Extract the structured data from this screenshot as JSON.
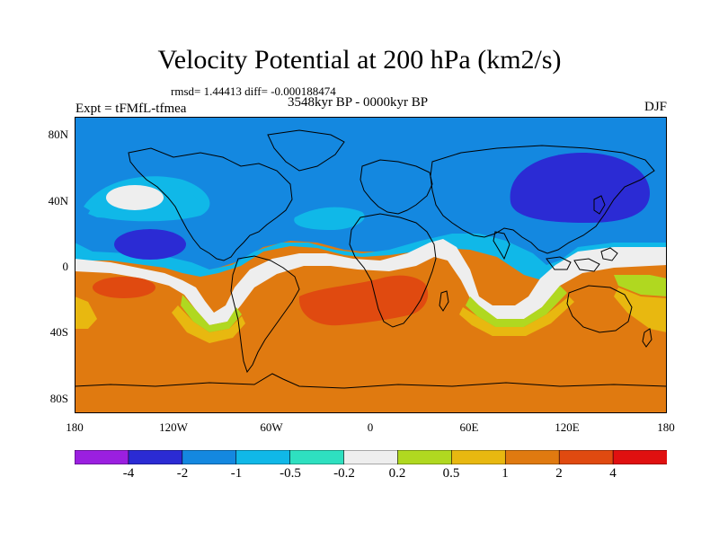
{
  "figure": {
    "title": "Velocity Potential at 200 hPa (km2/s)",
    "stats": "rmsd= 1.44413 diff= -0.000188474",
    "period": "3548kyr BP - 0000kyr BP",
    "experiment": "Expt = tFMfL-tfmea",
    "season": "DJF"
  },
  "map": {
    "lat_labels": [
      "80N",
      "40N",
      "0",
      "40S",
      "80S"
    ],
    "lon_labels": [
      "180",
      "120W",
      "60W",
      "0",
      "60E",
      "120E",
      "180"
    ]
  },
  "colorbar": {
    "labels": [
      "-4",
      "-2",
      "-1",
      "-0.5",
      "-0.2",
      "0.2",
      "0.5",
      "1",
      "2",
      "4"
    ],
    "colors": [
      "#9b1fe0",
      "#2b2bd4",
      "#1488e0",
      "#10b8e8",
      "#2ee0c0",
      "#eeeeee",
      "#b0d820",
      "#e8b810",
      "#e07a10",
      "#e04a10",
      "#e01010"
    ]
  },
  "palette": {
    "ocean_blue": "#1488e0",
    "strong_blue": "#2b2bd4",
    "orange": "#e07a10",
    "red_orange": "#e04a10",
    "coastline": "#000000"
  }
}
